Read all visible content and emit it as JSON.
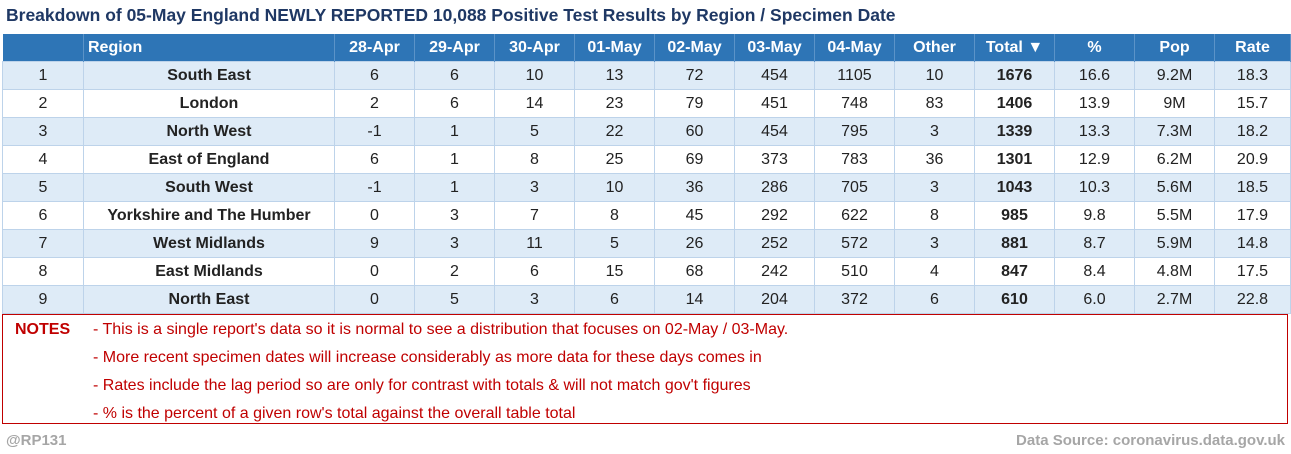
{
  "title": "Breakdown of 05-May England NEWLY REPORTED 10,088 Positive Test Results by Region / Specimen Date",
  "columns": [
    "",
    "Region",
    "28-Apr",
    "29-Apr",
    "30-Apr",
    "01-May",
    "02-May",
    "03-May",
    "04-May",
    "Other",
    "Total ▼",
    "%",
    "Pop",
    "Rate"
  ],
  "chart_data": {
    "type": "table",
    "title": "Breakdown of 05-May England NEWLY REPORTED 10,088 Positive Test Results by Region / Specimen Date",
    "columns": [
      "Region",
      "28-Apr",
      "29-Apr",
      "30-Apr",
      "01-May",
      "02-May",
      "03-May",
      "04-May",
      "Other",
      "Total",
      "%",
      "Pop",
      "Rate"
    ],
    "rows": [
      {
        "rank": "1",
        "region": "South East",
        "values": [
          "6",
          "6",
          "10",
          "13",
          "72",
          "454",
          "1105"
        ],
        "other": "10",
        "total": "1676",
        "pct": "16.6",
        "pop": "9.2M",
        "rate": "18.3"
      },
      {
        "rank": "2",
        "region": "London",
        "values": [
          "2",
          "6",
          "14",
          "23",
          "79",
          "451",
          "748"
        ],
        "other": "83",
        "total": "1406",
        "pct": "13.9",
        "pop": "9M",
        "rate": "15.7"
      },
      {
        "rank": "3",
        "region": "North West",
        "values": [
          "-1",
          "1",
          "5",
          "22",
          "60",
          "454",
          "795"
        ],
        "other": "3",
        "total": "1339",
        "pct": "13.3",
        "pop": "7.3M",
        "rate": "18.2"
      },
      {
        "rank": "4",
        "region": "East of England",
        "values": [
          "6",
          "1",
          "8",
          "25",
          "69",
          "373",
          "783"
        ],
        "other": "36",
        "total": "1301",
        "pct": "12.9",
        "pop": "6.2M",
        "rate": "20.9"
      },
      {
        "rank": "5",
        "region": "South West",
        "values": [
          "-1",
          "1",
          "3",
          "10",
          "36",
          "286",
          "705"
        ],
        "other": "3",
        "total": "1043",
        "pct": "10.3",
        "pop": "5.6M",
        "rate": "18.5"
      },
      {
        "rank": "6",
        "region": "Yorkshire and The Humber",
        "values": [
          "0",
          "3",
          "7",
          "8",
          "45",
          "292",
          "622"
        ],
        "other": "8",
        "total": "985",
        "pct": "9.8",
        "pop": "5.5M",
        "rate": "17.9"
      },
      {
        "rank": "7",
        "region": "West Midlands",
        "values": [
          "9",
          "3",
          "11",
          "5",
          "26",
          "252",
          "572"
        ],
        "other": "3",
        "total": "881",
        "pct": "8.7",
        "pop": "5.9M",
        "rate": "14.8"
      },
      {
        "rank": "8",
        "region": "East Midlands",
        "values": [
          "0",
          "2",
          "6",
          "15",
          "68",
          "242",
          "510"
        ],
        "other": "4",
        "total": "847",
        "pct": "8.4",
        "pop": "4.8M",
        "rate": "17.5"
      },
      {
        "rank": "9",
        "region": "North East",
        "values": [
          "0",
          "5",
          "3",
          "6",
          "14",
          "204",
          "372"
        ],
        "other": "6",
        "total": "610",
        "pct": "6.0",
        "pop": "2.7M",
        "rate": "22.8"
      }
    ]
  },
  "notes": {
    "label": "NOTES",
    "lines": [
      "- This is a single report's data so it is normal to see a distribution that focuses on 02-May / 03-May.",
      "- More recent specimen dates will increase considerably as more data for these days comes in",
      "- Rates include the lag period so are only for contrast with totals & will not match gov't figures",
      "- % is the percent of a given row's total against the overall table total"
    ]
  },
  "footer": {
    "author": "@RP131",
    "source": "Data Source: coronavirus.data.gov.uk"
  },
  "colors": {
    "header_bg": "#2e75b6",
    "title": "#1f3864",
    "notes": "#c00000",
    "row_alt": "#deebf7",
    "footer": "#a6a6a6"
  }
}
